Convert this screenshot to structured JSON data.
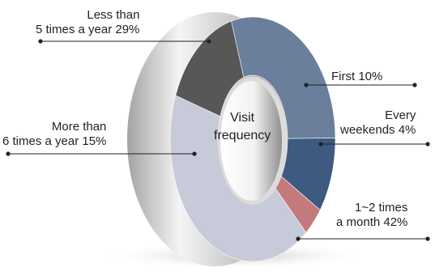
{
  "chart_data": {
    "type": "pie",
    "style": "3d-donut",
    "center_label": "Visit\nfrequency",
    "slices": [
      {
        "label": "Less than\n5 times a year 29%",
        "category": "Less than 5 times a year",
        "value": 29,
        "color": "#6a7f9b"
      },
      {
        "label": "First 10%",
        "category": "First",
        "value": 10,
        "color": "#3e5a80"
      },
      {
        "label": "Every\nweekends 4%",
        "category": "Every weekends",
        "value": 4,
        "color": "#c47a7c"
      },
      {
        "label": "1~2 times\na month 42%",
        "category": "1~2 times a month",
        "value": 42,
        "color": "#c6cad9"
      },
      {
        "label": "More than\n6 times a year 15%",
        "category": "More than 6 times a year",
        "value": 15,
        "color": "#575757"
      }
    ]
  }
}
